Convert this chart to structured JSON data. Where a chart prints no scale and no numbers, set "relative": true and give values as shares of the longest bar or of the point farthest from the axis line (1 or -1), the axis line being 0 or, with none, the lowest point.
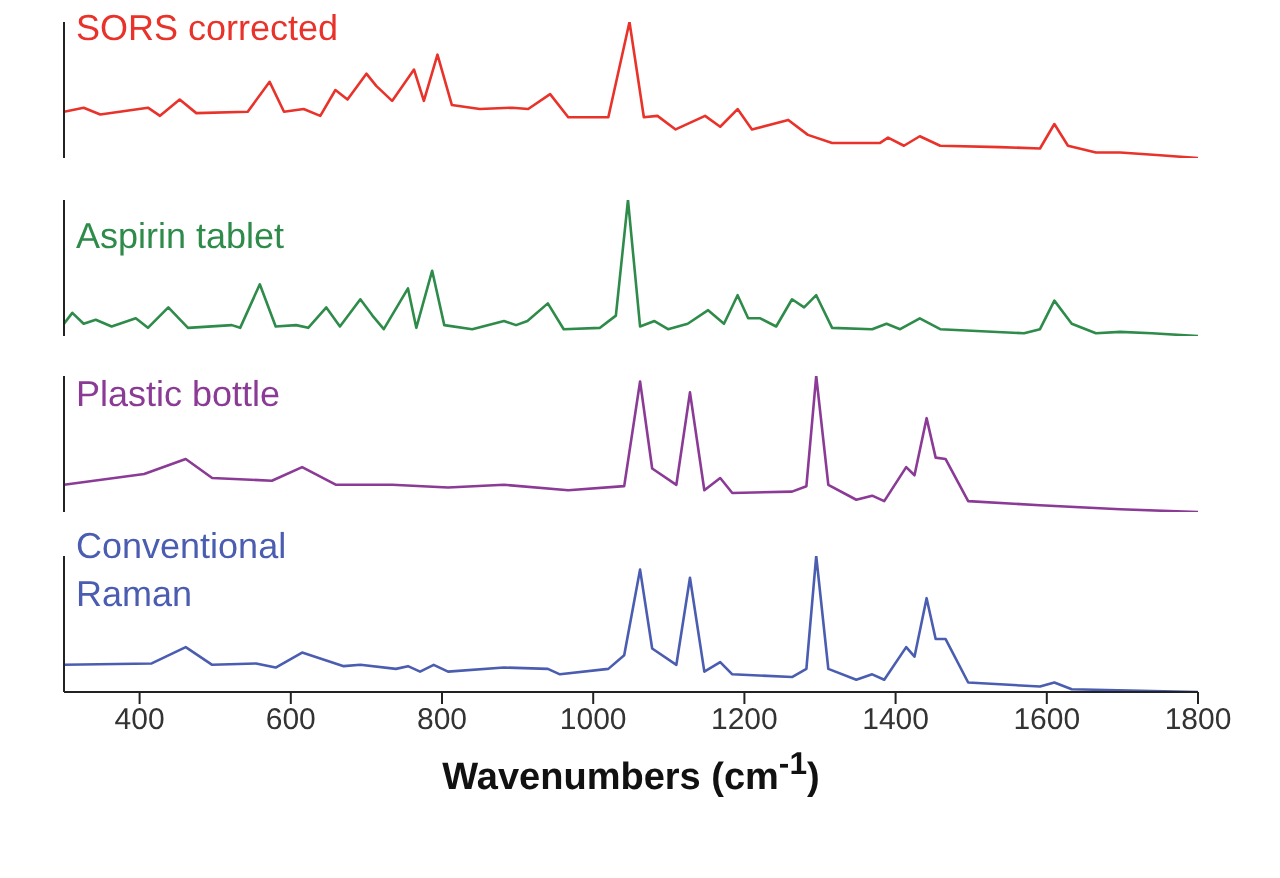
{
  "chart_data": [
    {
      "type": "line",
      "relative": true,
      "xlim": [
        300,
        1800
      ],
      "tick_labels": false,
      "grid": false,
      "legend": false,
      "series": [
        {
          "name": "SORS corrected",
          "color": "#e8322a",
          "x": [
            300,
            326,
            348,
            411,
            427,
            453,
            475,
            543,
            572,
            591,
            617,
            639,
            659,
            675,
            700,
            713,
            734,
            763,
            776,
            794,
            813,
            850,
            893,
            914,
            943,
            967,
            1020,
            1048,
            1067,
            1085,
            1109,
            1148,
            1168,
            1191,
            1210,
            1258,
            1284,
            1316,
            1379,
            1390,
            1411,
            1432,
            1459,
            1538,
            1591,
            1610,
            1628,
            1665,
            1697,
            1750,
            1800
          ],
          "values": [
            0.34,
            0.37,
            0.32,
            0.37,
            0.31,
            0.43,
            0.33,
            0.34,
            0.56,
            0.34,
            0.36,
            0.31,
            0.5,
            0.43,
            0.62,
            0.53,
            0.42,
            0.65,
            0.42,
            0.76,
            0.39,
            0.36,
            0.37,
            0.36,
            0.47,
            0.3,
            0.3,
            1,
            0.3,
            0.31,
            0.21,
            0.31,
            0.23,
            0.36,
            0.21,
            0.28,
            0.17,
            0.11,
            0.11,
            0.15,
            0.09,
            0.16,
            0.09,
            0.08,
            0.07,
            0.25,
            0.09,
            0.04,
            0.04,
            0.02,
            0
          ]
        }
      ]
    },
    {
      "type": "line",
      "relative": true,
      "xlim": [
        300,
        1800
      ],
      "tick_labels": false,
      "grid": false,
      "legend": false,
      "series": [
        {
          "name": "Aspirin tablet",
          "color": "#2e8b4a",
          "x": [
            300,
            311,
            326,
            342,
            363,
            395,
            411,
            438,
            464,
            522,
            533,
            559,
            580,
            607,
            623,
            647,
            665,
            692,
            708,
            723,
            755,
            766,
            787,
            803,
            840,
            882,
            898,
            913,
            940,
            961,
            1009,
            1030,
            1046,
            1062,
            1081,
            1099,
            1125,
            1152,
            1173,
            1191,
            1205,
            1221,
            1242,
            1263,
            1279,
            1295,
            1316,
            1369,
            1388,
            1406,
            1432,
            1459,
            1570,
            1591,
            1610,
            1633,
            1665,
            1697,
            1739,
            1800
          ],
          "values": [
            0.09,
            0.17,
            0.09,
            0.12,
            0.07,
            0.13,
            0.06,
            0.21,
            0.06,
            0.08,
            0.06,
            0.38,
            0.07,
            0.08,
            0.06,
            0.21,
            0.07,
            0.27,
            0.15,
            0.05,
            0.35,
            0.06,
            0.48,
            0.08,
            0.05,
            0.11,
            0.08,
            0.11,
            0.24,
            0.05,
            0.06,
            0.15,
            1,
            0.07,
            0.11,
            0.05,
            0.09,
            0.19,
            0.09,
            0.3,
            0.13,
            0.13,
            0.07,
            0.27,
            0.21,
            0.3,
            0.06,
            0.05,
            0.09,
            0.05,
            0.13,
            0.05,
            0.02,
            0.05,
            0.26,
            0.09,
            0.02,
            0.03,
            0.02,
            0
          ]
        }
      ]
    },
    {
      "type": "line",
      "relative": true,
      "xlim": [
        300,
        1800
      ],
      "tick_labels": false,
      "grid": false,
      "legend": false,
      "series": [
        {
          "name": "Plastic bottle",
          "color": "#8b3a96",
          "x": [
            300,
            406,
            461,
            496,
            575,
            615,
            660,
            734,
            808,
            882,
            967,
            1041,
            1062,
            1078,
            1110,
            1128,
            1147,
            1168,
            1184,
            1263,
            1282,
            1295,
            1311,
            1348,
            1369,
            1385,
            1414,
            1425,
            1441,
            1453,
            1466,
            1496,
            1591,
            1697,
            1800
          ],
          "values": [
            0.2,
            0.28,
            0.39,
            0.25,
            0.23,
            0.33,
            0.2,
            0.2,
            0.18,
            0.2,
            0.16,
            0.19,
            0.96,
            0.32,
            0.2,
            0.88,
            0.16,
            0.25,
            0.14,
            0.15,
            0.19,
            1,
            0.2,
            0.09,
            0.12,
            0.08,
            0.33,
            0.27,
            0.69,
            0.4,
            0.39,
            0.08,
            0.05,
            0.02,
            0
          ]
        }
      ]
    },
    {
      "type": "line",
      "relative": true,
      "xlim": [
        300,
        1800
      ],
      "xticks": [
        400,
        600,
        800,
        1000,
        1200,
        1400,
        1600,
        1800
      ],
      "tick_labels": "x",
      "xlabel": "Wavenumbers (cm$^{-1}$)",
      "grid": false,
      "legend": false,
      "series": [
        {
          "name": "Conventional Raman",
          "color": "#4a5db0",
          "x": [
            300,
            416,
            461,
            496,
            554,
            580,
            615,
            670,
            692,
            739,
            755,
            771,
            789,
            808,
            882,
            940,
            956,
            1020,
            1041,
            1062,
            1078,
            1110,
            1128,
            1147,
            1168,
            1184,
            1263,
            1282,
            1295,
            1311,
            1348,
            1369,
            1385,
            1414,
            1425,
            1441,
            1453,
            1466,
            1496,
            1591,
            1610,
            1633,
            1800
          ],
          "values": [
            0.2,
            0.21,
            0.33,
            0.2,
            0.21,
            0.18,
            0.29,
            0.19,
            0.2,
            0.17,
            0.19,
            0.15,
            0.2,
            0.15,
            0.18,
            0.17,
            0.13,
            0.17,
            0.27,
            0.9,
            0.32,
            0.2,
            0.84,
            0.15,
            0.22,
            0.13,
            0.11,
            0.17,
            1,
            0.17,
            0.09,
            0.13,
            0.09,
            0.33,
            0.26,
            0.69,
            0.39,
            0.39,
            0.07,
            0.04,
            0.07,
            0.02,
            0
          ]
        }
      ]
    }
  ]
}
